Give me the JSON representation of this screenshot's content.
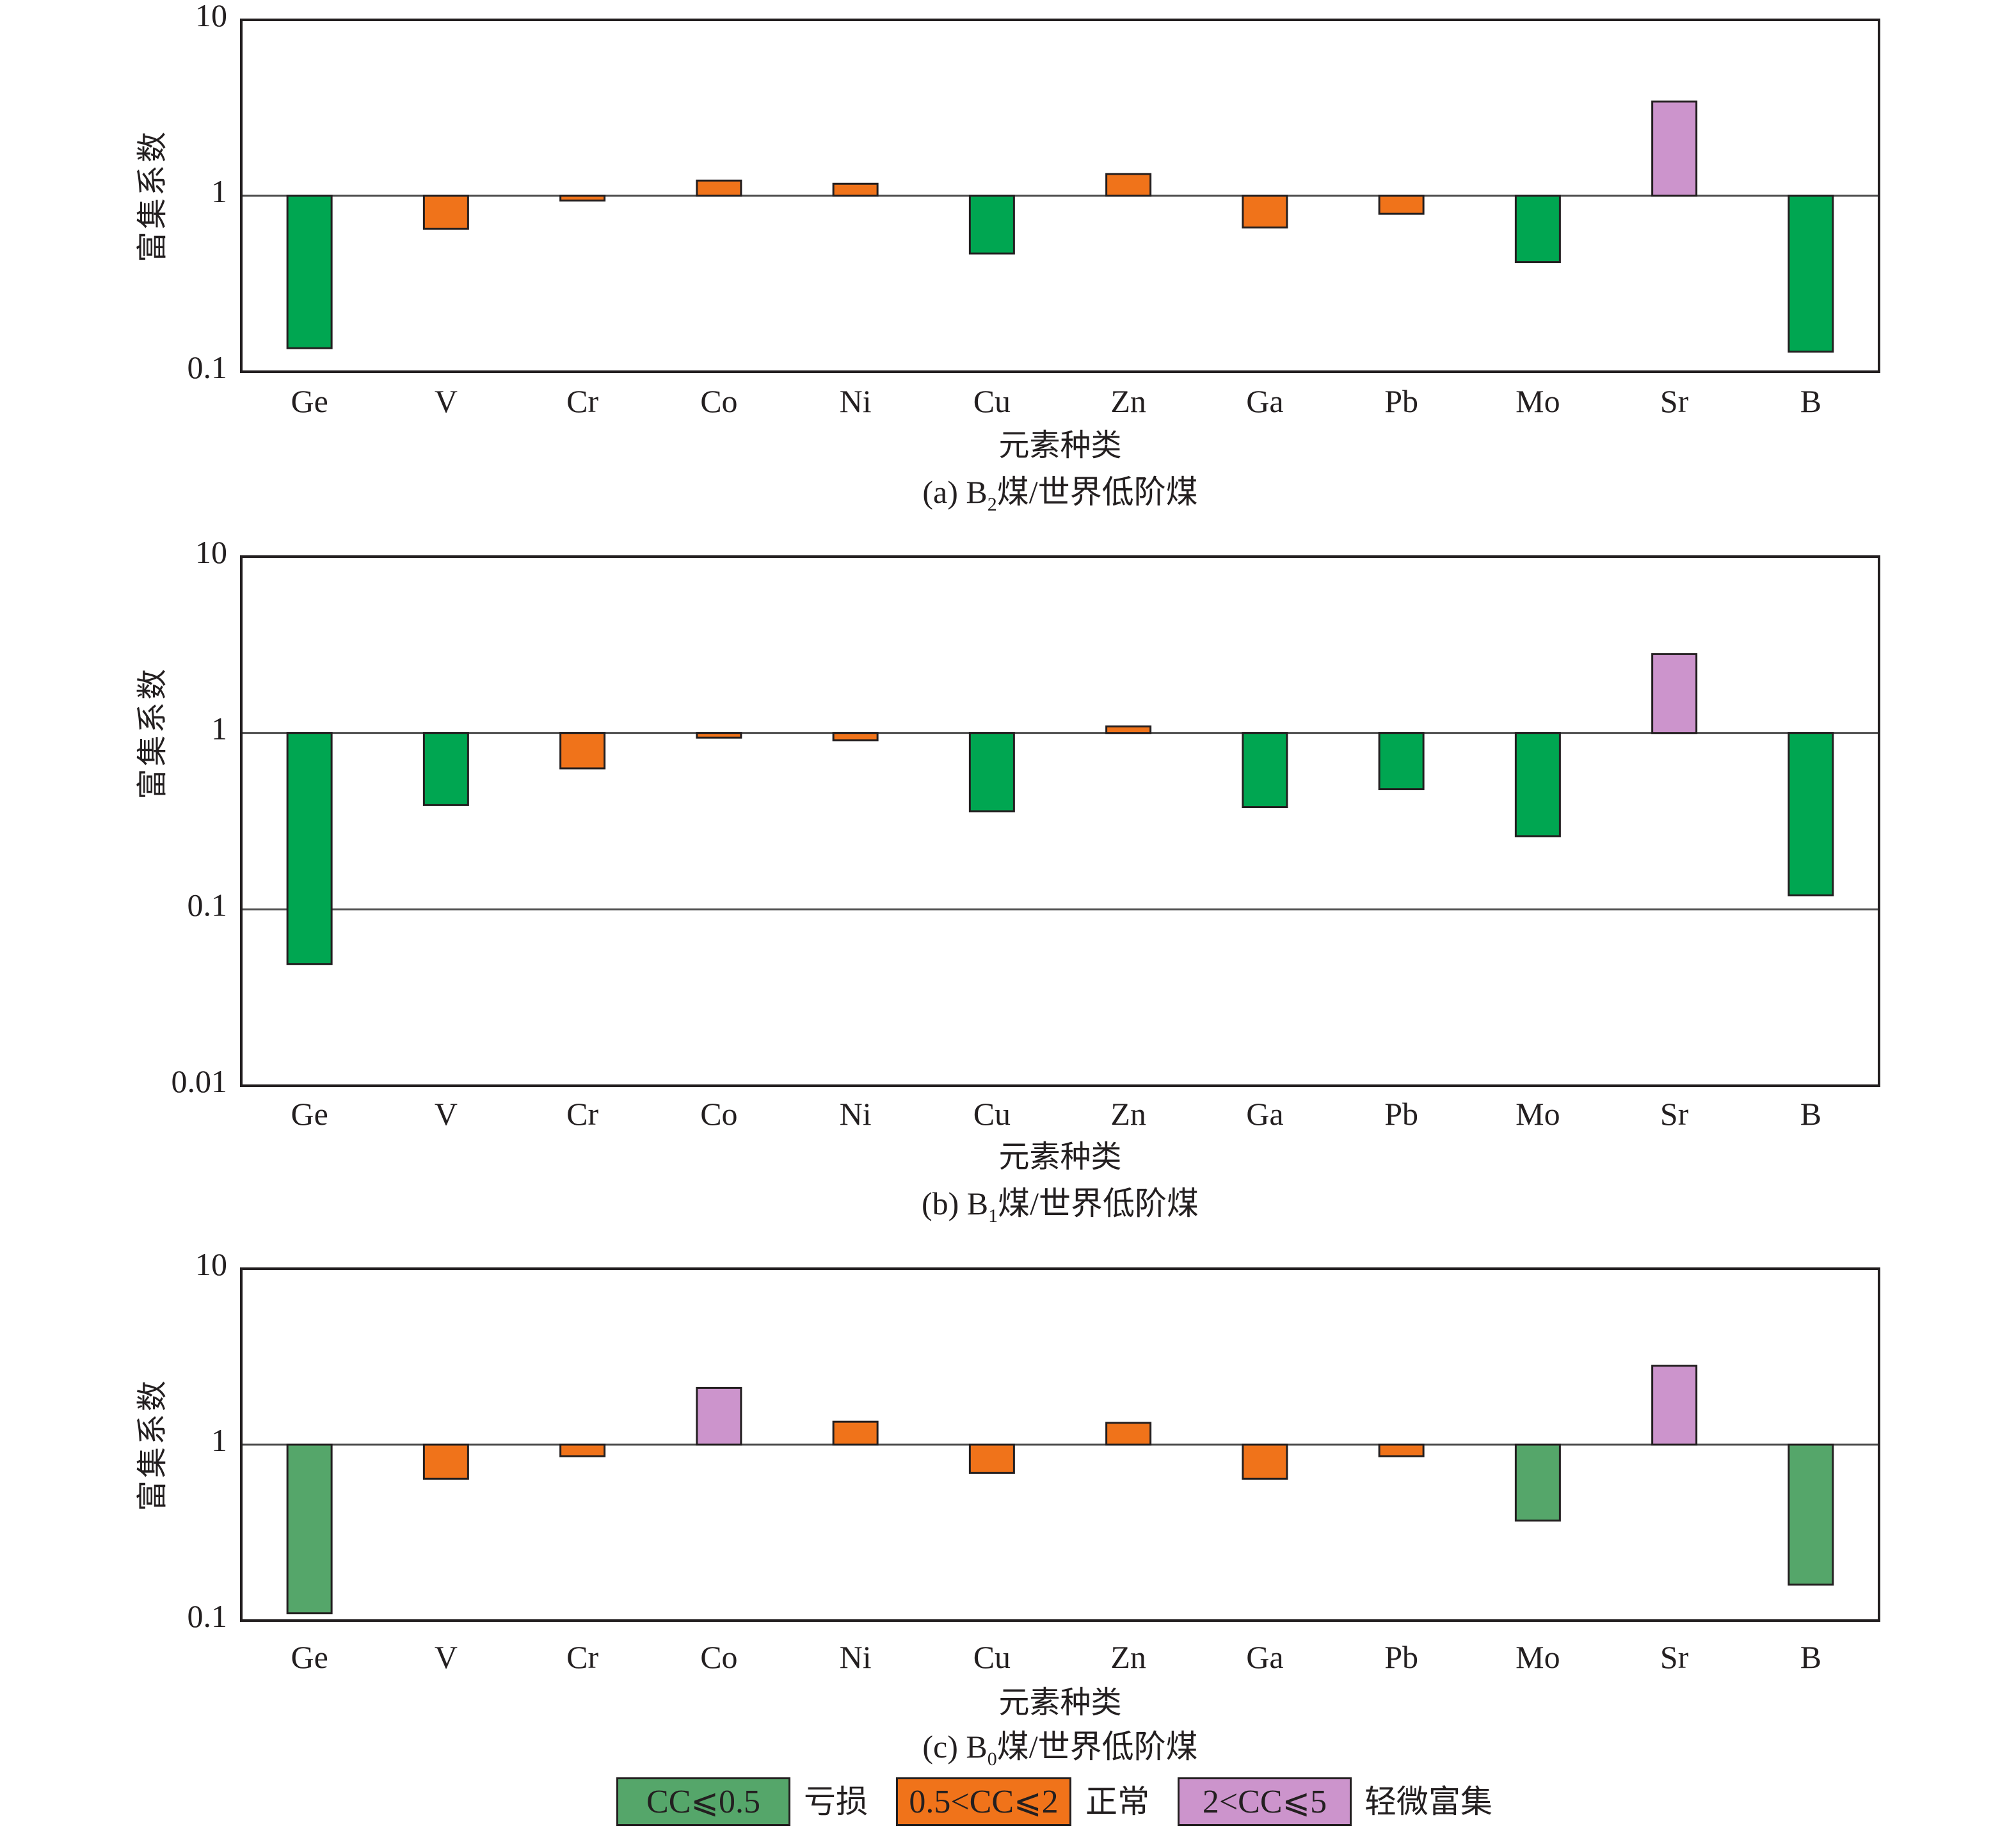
{
  "colors": {
    "normal": "#f0731a",
    "slight_enrichment": "#cc94cc",
    "axis": "#231f20",
    "reference_line": "#4d4d4d"
  },
  "chart_data": [
    {
      "type": "bar",
      "panel": "a",
      "title": "(a) B₂煤/世界低阶煤",
      "caption_prefix": "(a) B",
      "caption_sub": "2",
      "caption_suffix": "煤/世界低阶煤",
      "xlabel": "元素种类",
      "ylabel": "富集系数",
      "yscale": "log",
      "ylim": [
        0.1,
        10
      ],
      "baseline": 1,
      "yticks": [
        "10",
        "1",
        "0.1"
      ],
      "ytick_values": [
        10,
        1,
        0.1
      ],
      "categories": [
        "Ge",
        "V",
        "Cr",
        "Co",
        "Ni",
        "Cu",
        "Zn",
        "Ga",
        "Pb",
        "Mo",
        "Sr",
        "B"
      ],
      "values": [
        0.136,
        0.65,
        0.94,
        1.22,
        1.17,
        0.47,
        1.33,
        0.66,
        0.79,
        0.42,
        3.43,
        0.13
      ],
      "depletion_color": "#00a651",
      "gridlines": [
        1
      ]
    },
    {
      "type": "bar",
      "panel": "b",
      "title": "(b) B₁煤/世界低阶煤",
      "caption_prefix": "(b) B",
      "caption_sub": "1",
      "caption_suffix": "煤/世界低阶煤",
      "xlabel": "元素种类",
      "ylabel": "富集系数",
      "yscale": "log",
      "ylim": [
        0.01,
        10
      ],
      "baseline": 1,
      "yticks": [
        "10",
        "1",
        "0.1",
        "0.01"
      ],
      "ytick_values": [
        10,
        1,
        0.1,
        0.01
      ],
      "categories": [
        "Ge",
        "V",
        "Cr",
        "Co",
        "Ni",
        "Cu",
        "Zn",
        "Ga",
        "Pb",
        "Mo",
        "Sr",
        "B"
      ],
      "values": [
        0.049,
        0.39,
        0.63,
        0.94,
        0.91,
        0.36,
        1.09,
        0.38,
        0.48,
        0.26,
        2.8,
        0.12
      ],
      "depletion_color": "#00a651",
      "gridlines": [
        1,
        0.1
      ]
    },
    {
      "type": "bar",
      "panel": "c",
      "title": "(c) B₀煤/世界低阶煤",
      "caption_prefix": "(c) B",
      "caption_sub": "0",
      "caption_suffix": "煤/世界低阶煤",
      "xlabel": "元素种类",
      "ylabel": "富集系数",
      "yscale": "log",
      "ylim": [
        0.1,
        10
      ],
      "baseline": 1,
      "yticks": [
        "10",
        "1",
        "0.1"
      ],
      "ytick_values": [
        10,
        1,
        0.1
      ],
      "categories": [
        "Ge",
        "V",
        "Cr",
        "Co",
        "Ni",
        "Cu",
        "Zn",
        "Ga",
        "Pb",
        "Mo",
        "Sr",
        "B"
      ],
      "values": [
        0.11,
        0.64,
        0.86,
        2.1,
        1.35,
        0.69,
        1.33,
        0.64,
        0.86,
        0.37,
        2.81,
        0.16
      ],
      "depletion_color": "#55a66a",
      "gridlines": [
        1
      ]
    }
  ],
  "legend": [
    {
      "key": "depletion",
      "box_label": "CC⩽0.5",
      "text": "亏损",
      "color": "#55a66a",
      "max": 0.5
    },
    {
      "key": "normal",
      "box_label": "0.5<CC⩽2",
      "text": "正常",
      "color": "#f0731a",
      "max": 2
    },
    {
      "key": "slight_enrichment",
      "box_label": "2<CC⩽5",
      "text": "轻微富集",
      "color": "#cc94cc",
      "max": 5
    }
  ]
}
